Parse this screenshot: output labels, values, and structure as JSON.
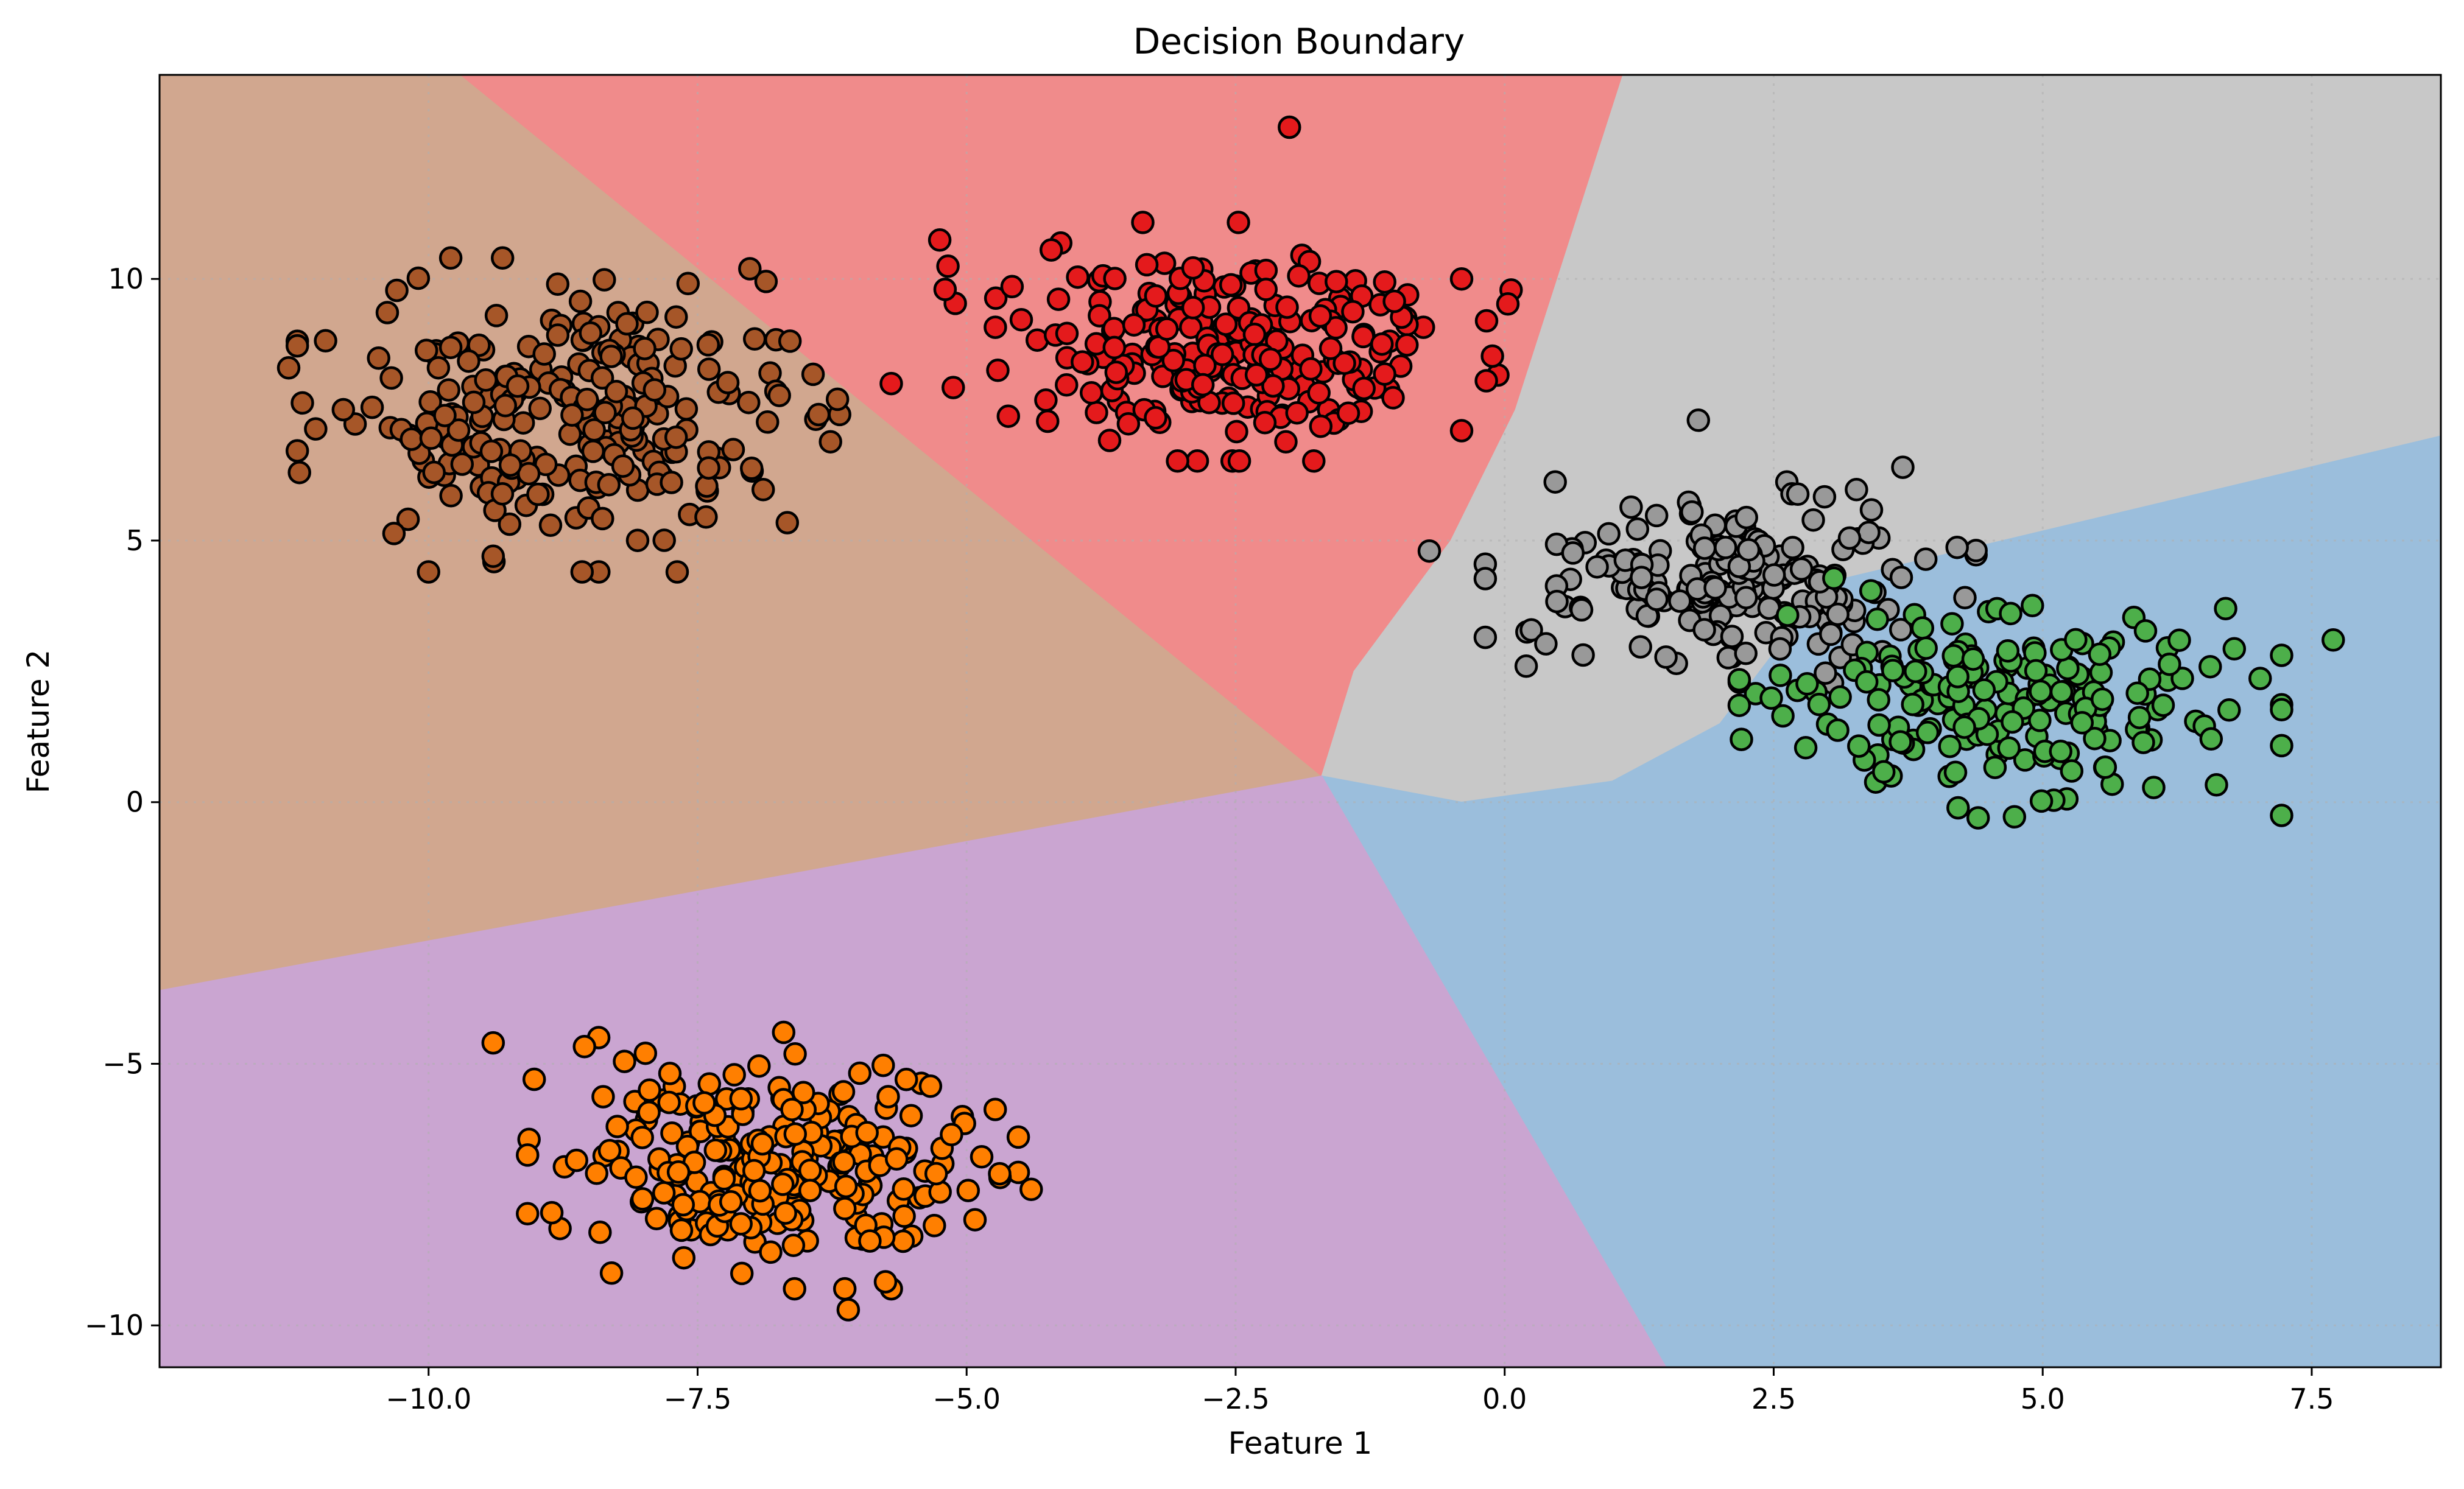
{
  "chart_data": {
    "type": "scatter",
    "title": "Decision Boundary",
    "xlabel": "Feature 1",
    "ylabel": "Feature 2",
    "xlim": [
      -12.5,
      8.7
    ],
    "ylim": [
      -10.8,
      13.9
    ],
    "xticks": [
      -10.0,
      -7.5,
      -5.0,
      -2.5,
      0.0,
      2.5,
      5.0,
      7.5
    ],
    "yticks": [
      -10,
      -5,
      0,
      5,
      10
    ],
    "xtick_labels": [
      "−10.0",
      "−7.5",
      "−5.0",
      "−2.5",
      "0.0",
      "2.5",
      "5.0",
      "7.5"
    ],
    "ytick_labels": [
      "−10",
      "−5",
      "0",
      "5",
      "10"
    ],
    "grid": true,
    "regions": [
      {
        "cluster": "brown",
        "color": "#d1a78f",
        "polygon": [
          [
            -12.5,
            13.9
          ],
          [
            -9.7,
            13.9
          ],
          [
            -1.7,
            0.5
          ],
          [
            -12.5,
            -3.6
          ]
        ]
      },
      {
        "cluster": "red",
        "color": "#f08b8b",
        "polygon": [
          [
            -9.7,
            13.9
          ],
          [
            1.1,
            13.9
          ],
          [
            0.1,
            7.5
          ],
          [
            -0.5,
            5.0
          ],
          [
            -1.4,
            2.5
          ],
          [
            -1.7,
            0.5
          ]
        ]
      },
      {
        "cluster": "gray",
        "color": "#c8c8c8",
        "polygon": [
          [
            1.1,
            13.9
          ],
          [
            8.7,
            13.9
          ],
          [
            8.7,
            7.0
          ],
          [
            3.0,
            4.2
          ],
          [
            2.0,
            1.5
          ],
          [
            1.0,
            0.4
          ],
          [
            -0.4,
            0.0
          ],
          [
            -1.7,
            0.5
          ],
          [
            -1.4,
            2.5
          ],
          [
            -0.5,
            5.0
          ],
          [
            0.1,
            7.5
          ]
        ]
      },
      {
        "cluster": "blue",
        "color": "#9bbedc",
        "polygon": [
          [
            -1.7,
            0.5
          ],
          [
            -0.4,
            0.0
          ],
          [
            1.0,
            0.4
          ],
          [
            2.0,
            1.5
          ],
          [
            3.0,
            4.2
          ],
          [
            8.7,
            7.0
          ],
          [
            8.7,
            -10.8
          ],
          [
            1.5,
            -10.8
          ]
        ]
      },
      {
        "cluster": "purple",
        "color": "#caa5d1",
        "polygon": [
          [
            -12.5,
            -3.6
          ],
          [
            -1.7,
            0.5
          ],
          [
            1.5,
            -10.8
          ],
          [
            -12.5,
            -10.8
          ]
        ]
      }
    ],
    "clusters": [
      {
        "name": "brown",
        "color": "#a65628",
        "center": [
          -8.7,
          7.4
        ],
        "spread": [
          1.05,
          1.25
        ],
        "n": 240
      },
      {
        "name": "red",
        "color": "#e41a1c",
        "center": [
          -2.7,
          8.8
        ],
        "spread": [
          1.15,
          0.95
        ],
        "n": 240
      },
      {
        "name": "gray",
        "color": "#999999",
        "center": [
          2.1,
          4.2
        ],
        "spread": [
          0.95,
          0.8
        ],
        "n": 200
      },
      {
        "name": "green",
        "color": "#4daf4a",
        "center": [
          4.7,
          2.0
        ],
        "spread": [
          1.05,
          0.95
        ],
        "n": 200
      },
      {
        "name": "orange",
        "color": "#ff7f00",
        "center": [
          -6.8,
          -6.9
        ],
        "spread": [
          0.95,
          1.0
        ],
        "n": 240
      }
    ],
    "notable_points": [
      {
        "color": "#a65628",
        "x": -11.3,
        "y": 8.3
      },
      {
        "color": "#a65628",
        "x": -11.2,
        "y": 6.3
      },
      {
        "color": "#a65628",
        "x": -10.0,
        "y": 4.4
      },
      {
        "color": "#a65628",
        "x": -9.4,
        "y": 4.7
      },
      {
        "color": "#a65628",
        "x": -8.8,
        "y": 9.9
      },
      {
        "color": "#a65628",
        "x": -6.2,
        "y": 7.7
      },
      {
        "color": "#e41a1c",
        "x": -2.0,
        "y": 12.9
      },
      {
        "color": "#e41a1c",
        "x": -5.7,
        "y": 8.0
      },
      {
        "color": "#e41a1c",
        "x": -5.2,
        "y": 9.8
      },
      {
        "color": "#e41a1c",
        "x": -0.4,
        "y": 7.1
      },
      {
        "color": "#e41a1c",
        "x": -0.4,
        "y": 10.0
      },
      {
        "color": "#999999",
        "x": 1.8,
        "y": 7.3
      },
      {
        "color": "#999999",
        "x": -0.7,
        "y": 4.8
      },
      {
        "color": "#999999",
        "x": 0.2,
        "y": 2.6
      },
      {
        "color": "#999999",
        "x": 3.7,
        "y": 6.4
      },
      {
        "color": "#4daf4a",
        "x": 7.7,
        "y": 3.1
      },
      {
        "color": "#4daf4a",
        "x": 4.4,
        "y": -0.3
      },
      {
        "color": "#4daf4a",
        "x": 2.2,
        "y": 1.2
      },
      {
        "color": "#4daf4a",
        "x": 6.7,
        "y": 3.7
      },
      {
        "color": "#ff7f00",
        "x": -9.4,
        "y": -4.6
      },
      {
        "color": "#ff7f00",
        "x": -4.4,
        "y": -7.4
      },
      {
        "color": "#ff7f00",
        "x": -6.1,
        "y": -9.7
      },
      {
        "color": "#ff7f00",
        "x": -8.3,
        "y": -9.0
      },
      {
        "color": "#ff7f00",
        "x": -6.7,
        "y": -4.4
      }
    ]
  }
}
